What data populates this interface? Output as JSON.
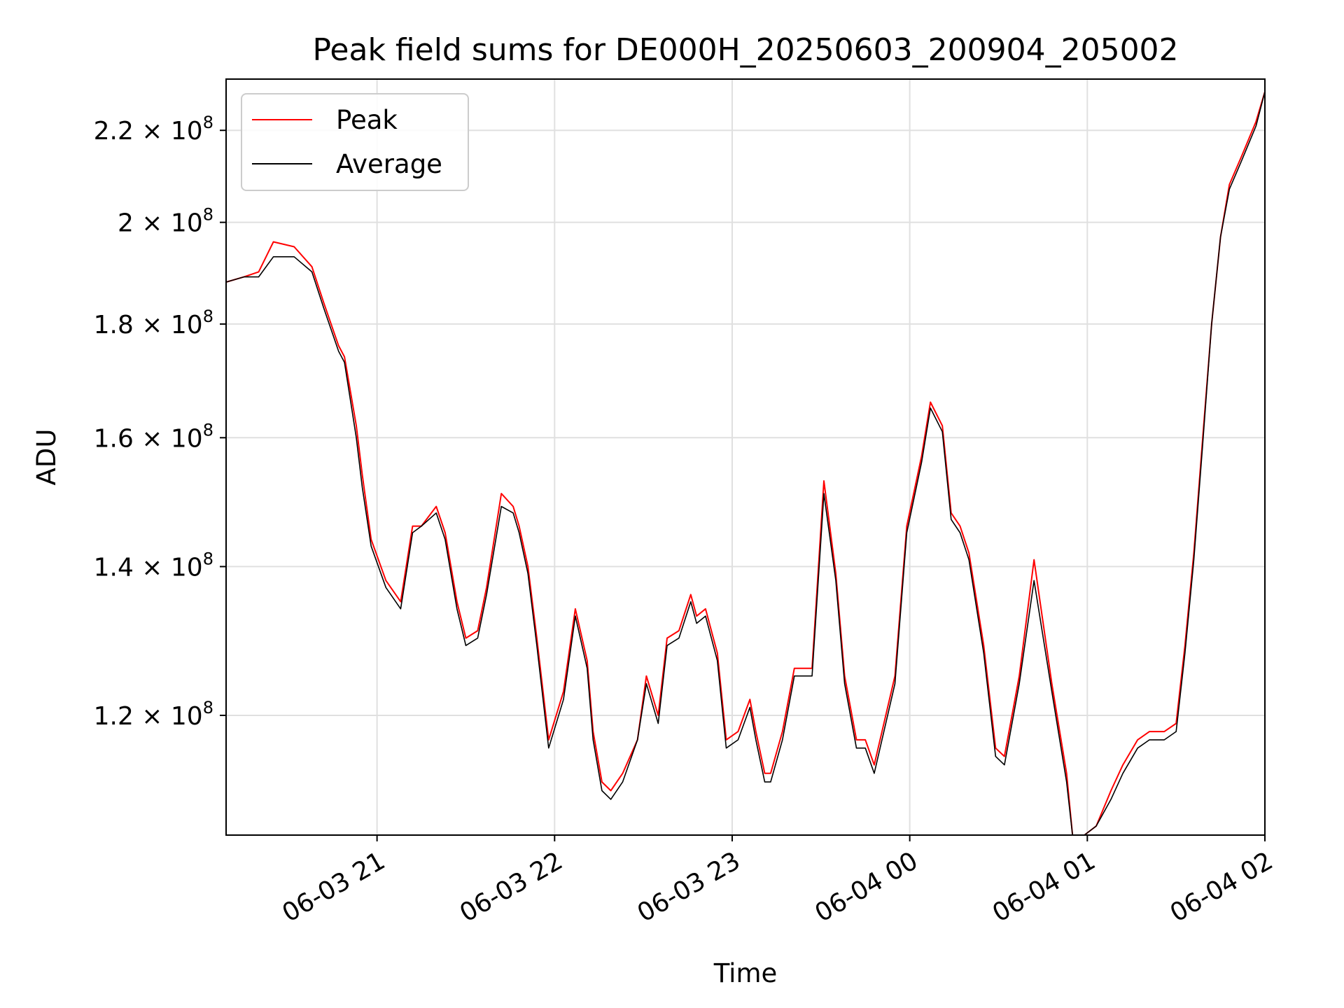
{
  "chart_data": {
    "type": "line",
    "title": "Peak field sums for DE000H_20250603_200904_205002",
    "xlabel": "Time",
    "ylabel": "ADU",
    "yscale": "log",
    "ylim": [
      106000000,
      232000000
    ],
    "xlim": [
      "2025-06-03 20:09",
      "2025-06-04 02:00"
    ],
    "grid": true,
    "legend_position": "upper-left",
    "x_ticks": [
      {
        "value": "2025-06-03 21:00",
        "label": "06-03 21"
      },
      {
        "value": "2025-06-03 22:00",
        "label": "06-03 22"
      },
      {
        "value": "2025-06-03 23:00",
        "label": "06-03 23"
      },
      {
        "value": "2025-06-04 00:00",
        "label": "06-04 00"
      },
      {
        "value": "2025-06-04 01:00",
        "label": "06-04 01"
      },
      {
        "value": "2025-06-04 02:00",
        "label": "06-04 02"
      }
    ],
    "y_ticks": [
      {
        "value": 120000000,
        "mantissa": "1.2",
        "exp": "8"
      },
      {
        "value": 140000000,
        "mantissa": "1.4",
        "exp": "8"
      },
      {
        "value": 160000000,
        "mantissa": "1.6",
        "exp": "8"
      },
      {
        "value": 180000000,
        "mantissa": "1.8",
        "exp": "8"
      },
      {
        "value": 200000000,
        "mantissa": "2",
        "exp": "8"
      },
      {
        "value": 220000000,
        "mantissa": "2.2",
        "exp": "8"
      }
    ],
    "series": [
      {
        "name": "Peak",
        "color": "#ff0000",
        "x": [
          "2025-06-03 20:09",
          "2025-06-03 20:15",
          "2025-06-03 20:20",
          "2025-06-03 20:25",
          "2025-06-03 20:32",
          "2025-06-03 20:38",
          "2025-06-03 20:42",
          "2025-06-03 20:47",
          "2025-06-03 20:49",
          "2025-06-03 20:53",
          "2025-06-03 20:55",
          "2025-06-03 20:58",
          "2025-06-03 21:03",
          "2025-06-03 21:08",
          "2025-06-03 21:12",
          "2025-06-03 21:15",
          "2025-06-03 21:20",
          "2025-06-03 21:23",
          "2025-06-03 21:27",
          "2025-06-03 21:30",
          "2025-06-03 21:34",
          "2025-06-03 21:37",
          "2025-06-03 21:42",
          "2025-06-03 21:46",
          "2025-06-03 21:48",
          "2025-06-03 21:51",
          "2025-06-03 21:54",
          "2025-06-03 21:58",
          "2025-06-03 22:03",
          "2025-06-03 22:07",
          "2025-06-03 22:11",
          "2025-06-03 22:13",
          "2025-06-03 22:16",
          "2025-06-03 22:19",
          "2025-06-03 22:23",
          "2025-06-03 22:28",
          "2025-06-03 22:31",
          "2025-06-03 22:35",
          "2025-06-03 22:38",
          "2025-06-03 22:42",
          "2025-06-03 22:46",
          "2025-06-03 22:48",
          "2025-06-03 22:51",
          "2025-06-03 22:55",
          "2025-06-03 22:58",
          "2025-06-03 23:02",
          "2025-06-03 23:04",
          "2025-06-03 23:06",
          "2025-06-03 23:08",
          "2025-06-03 23:11",
          "2025-06-03 23:13",
          "2025-06-03 23:17",
          "2025-06-03 23:21",
          "2025-06-03 23:27",
          "2025-06-03 23:31",
          "2025-06-03 23:35",
          "2025-06-03 23:38",
          "2025-06-03 23:42",
          "2025-06-03 23:45",
          "2025-06-03 23:48",
          "2025-06-03 23:55",
          "2025-06-03 23:59",
          "2025-06-04 00:04",
          "2025-06-04 00:07",
          "2025-06-04 00:11",
          "2025-06-04 00:14",
          "2025-06-04 00:17",
          "2025-06-04 00:20",
          "2025-06-04 00:25",
          "2025-06-04 00:29",
          "2025-06-04 00:32",
          "2025-06-04 00:37",
          "2025-06-04 00:42",
          "2025-06-04 00:48",
          "2025-06-04 00:53",
          "2025-06-04 00:55",
          "2025-06-04 00:59",
          "2025-06-04 01:03",
          "2025-06-04 01:08",
          "2025-06-04 01:12",
          "2025-06-04 01:17",
          "2025-06-04 01:21",
          "2025-06-04 01:26",
          "2025-06-04 01:30",
          "2025-06-04 01:33",
          "2025-06-04 01:36",
          "2025-06-04 01:39",
          "2025-06-04 01:42",
          "2025-06-04 01:45",
          "2025-06-04 01:48",
          "2025-06-04 01:52",
          "2025-06-04 01:57",
          "2025-06-04 02:00"
        ],
        "values": [
          188000000,
          189000000,
          190000000,
          196000000,
          195000000,
          191000000,
          184000000,
          176000000,
          174000000,
          162000000,
          154000000,
          144000000,
          138000000,
          135000000,
          146000000,
          146000000,
          149000000,
          145000000,
          135000000,
          130000000,
          131000000,
          137000000,
          151000000,
          149000000,
          146000000,
          140000000,
          130000000,
          117000000,
          123000000,
          134000000,
          127000000,
          118000000,
          112000000,
          111000000,
          113000000,
          117000000,
          125000000,
          120000000,
          130000000,
          131000000,
          136000000,
          133000000,
          134000000,
          128000000,
          117000000,
          118000000,
          120000000,
          122000000,
          118000000,
          113000000,
          113000000,
          118000000,
          126000000,
          126000000,
          153000000,
          139000000,
          125000000,
          117000000,
          117000000,
          114000000,
          125000000,
          146000000,
          157000000,
          166000000,
          162000000,
          148000000,
          146000000,
          142000000,
          129000000,
          116000000,
          115000000,
          125000000,
          141000000,
          124000000,
          113000000,
          106000000,
          106000000,
          107000000,
          111000000,
          114000000,
          117000000,
          118000000,
          118000000,
          119000000,
          129000000,
          142000000,
          160000000,
          180000000,
          197000000,
          208000000,
          214000000,
          222000000,
          229000000
        ]
      },
      {
        "name": "Average",
        "color": "#000000",
        "x": [
          "2025-06-03 20:09",
          "2025-06-03 20:15",
          "2025-06-03 20:20",
          "2025-06-03 20:25",
          "2025-06-03 20:32",
          "2025-06-03 20:38",
          "2025-06-03 20:42",
          "2025-06-03 20:47",
          "2025-06-03 20:49",
          "2025-06-03 20:53",
          "2025-06-03 20:55",
          "2025-06-03 20:58",
          "2025-06-03 21:03",
          "2025-06-03 21:08",
          "2025-06-03 21:12",
          "2025-06-03 21:15",
          "2025-06-03 21:20",
          "2025-06-03 21:23",
          "2025-06-03 21:27",
          "2025-06-03 21:30",
          "2025-06-03 21:34",
          "2025-06-03 21:37",
          "2025-06-03 21:42",
          "2025-06-03 21:46",
          "2025-06-03 21:48",
          "2025-06-03 21:51",
          "2025-06-03 21:54",
          "2025-06-03 21:58",
          "2025-06-03 22:03",
          "2025-06-03 22:07",
          "2025-06-03 22:11",
          "2025-06-03 22:13",
          "2025-06-03 22:16",
          "2025-06-03 22:19",
          "2025-06-03 22:23",
          "2025-06-03 22:28",
          "2025-06-03 22:31",
          "2025-06-03 22:35",
          "2025-06-03 22:38",
          "2025-06-03 22:42",
          "2025-06-03 22:46",
          "2025-06-03 22:48",
          "2025-06-03 22:51",
          "2025-06-03 22:55",
          "2025-06-03 22:58",
          "2025-06-03 23:02",
          "2025-06-03 23:04",
          "2025-06-03 23:06",
          "2025-06-03 23:08",
          "2025-06-03 23:11",
          "2025-06-03 23:13",
          "2025-06-03 23:17",
          "2025-06-03 23:21",
          "2025-06-03 23:27",
          "2025-06-03 23:31",
          "2025-06-03 23:35",
          "2025-06-03 23:38",
          "2025-06-03 23:42",
          "2025-06-03 23:45",
          "2025-06-03 23:48",
          "2025-06-03 23:55",
          "2025-06-03 23:59",
          "2025-06-04 00:04",
          "2025-06-04 00:07",
          "2025-06-04 00:11",
          "2025-06-04 00:14",
          "2025-06-04 00:17",
          "2025-06-04 00:20",
          "2025-06-04 00:25",
          "2025-06-04 00:29",
          "2025-06-04 00:32",
          "2025-06-04 00:37",
          "2025-06-04 00:42",
          "2025-06-04 00:48",
          "2025-06-04 00:53",
          "2025-06-04 00:55",
          "2025-06-04 00:59",
          "2025-06-04 01:03",
          "2025-06-04 01:08",
          "2025-06-04 01:12",
          "2025-06-04 01:17",
          "2025-06-04 01:21",
          "2025-06-04 01:26",
          "2025-06-04 01:30",
          "2025-06-04 01:33",
          "2025-06-04 01:36",
          "2025-06-04 01:39",
          "2025-06-04 01:42",
          "2025-06-04 01:45",
          "2025-06-04 01:48",
          "2025-06-04 01:52",
          "2025-06-04 01:57",
          "2025-06-04 02:00"
        ],
        "values": [
          188000000,
          189000000,
          189000000,
          193000000,
          193000000,
          190000000,
          183000000,
          175000000,
          173000000,
          160000000,
          152000000,
          143000000,
          137000000,
          134000000,
          145000000,
          146000000,
          148000000,
          144000000,
          134000000,
          129000000,
          130000000,
          136000000,
          149000000,
          148000000,
          145000000,
          139000000,
          129000000,
          116000000,
          122000000,
          133000000,
          126000000,
          117000000,
          111000000,
          110000000,
          112000000,
          117000000,
          124000000,
          119000000,
          129000000,
          130000000,
          135000000,
          132000000,
          133000000,
          127000000,
          116000000,
          117000000,
          119000000,
          121000000,
          117000000,
          112000000,
          112000000,
          117000000,
          125000000,
          125000000,
          151000000,
          138000000,
          124000000,
          116000000,
          116000000,
          113000000,
          124000000,
          145000000,
          156000000,
          165000000,
          161000000,
          147000000,
          145000000,
          141000000,
          128000000,
          115000000,
          114000000,
          124000000,
          138000000,
          123000000,
          112000000,
          106000000,
          106000000,
          107000000,
          110000000,
          113000000,
          116000000,
          117000000,
          117000000,
          118000000,
          128000000,
          141000000,
          159000000,
          180000000,
          197000000,
          207000000,
          213000000,
          221000000,
          229000000
        ]
      }
    ]
  }
}
